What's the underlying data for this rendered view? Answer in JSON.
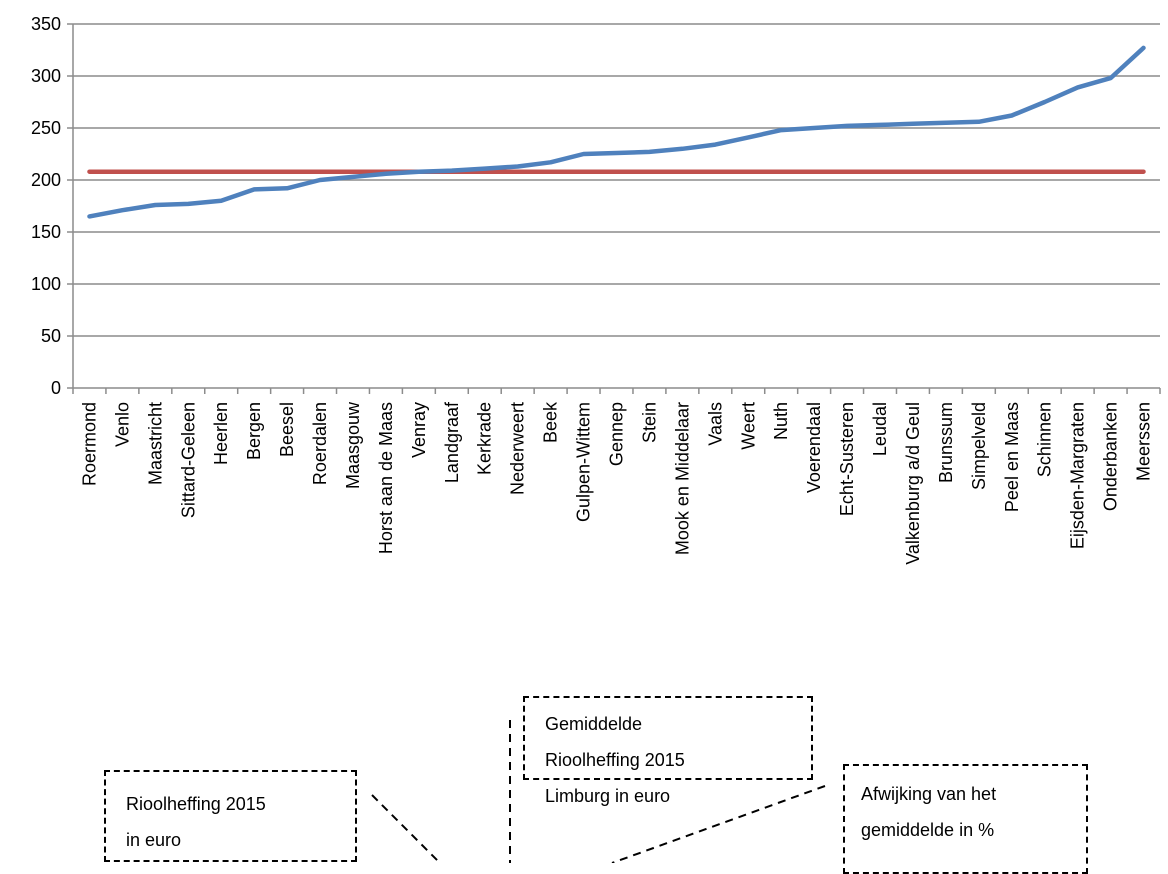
{
  "chart_data": {
    "type": "line",
    "categories": [
      "Roermond",
      "Venlo",
      "Maastricht",
      "Sittard-Geleen",
      "Heerlen",
      "Bergen",
      "Beesel",
      "Roerdalen",
      "Maasgouw",
      "Horst aan de Maas",
      "Venray",
      "Landgraaf",
      "Kerkrade",
      "Nederweert",
      "Beek",
      "Gulpen-Wittem",
      "Gennep",
      "Stein",
      "Mook en Middelaar",
      "Vaals",
      "Weert",
      "Nuth",
      "Voerendaal",
      "Echt-Susteren",
      "Leudal",
      "Valkenburg a/d Geul",
      "Brunssum",
      "Simpelveld",
      "Peel en Maas",
      "Schinnen",
      "Eijsden-Margraten",
      "Onderbanken",
      "Meerssen"
    ],
    "series": [
      {
        "values": [
          165,
          171,
          176,
          177,
          180,
          191,
          192,
          200,
          203,
          206,
          208,
          209,
          211,
          213,
          217,
          225,
          226,
          227,
          230,
          234,
          241,
          248,
          250,
          252,
          253,
          254,
          255,
          256,
          262,
          275,
          289,
          298,
          327
        ],
        "color": "#4f81bd"
      },
      {
        "values": [
          208,
          208,
          208,
          208,
          208,
          208,
          208,
          208,
          208,
          208,
          208,
          208,
          208,
          208,
          208,
          208,
          208,
          208,
          208,
          208,
          208,
          208,
          208,
          208,
          208,
          208,
          208,
          208,
          208,
          208,
          208,
          208,
          208
        ],
        "color": "#c0504d"
      }
    ],
    "yticks": [
      "0",
      "50",
      "100",
      "150",
      "200",
      "250",
      "300",
      "350"
    ],
    "ylim": [
      0,
      350
    ],
    "grid": true,
    "title": "",
    "xlabel": "",
    "ylabel": ""
  },
  "callouts": {
    "avg": [
      "Gemiddelde",
      "Rioolheffing 2015",
      "Limburg in euro"
    ],
    "rh": [
      "Rioolheffing 2015",
      "in euro"
    ],
    "dev": [
      "Afwijking van het",
      "gemiddelde in %"
    ]
  }
}
